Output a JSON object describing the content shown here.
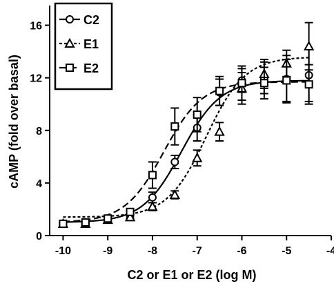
{
  "chart_data": {
    "type": "scatter",
    "title": "",
    "xlabel": "C2 or E1 or E2 (log M)",
    "ylabel": "cAMP (fold over basal)",
    "xlim": [
      -10.3,
      -4
    ],
    "ylim": [
      0,
      17.5
    ],
    "xticks": [
      -10,
      -9,
      -8,
      -7,
      -6,
      -5,
      -4
    ],
    "yticks": [
      0,
      4,
      8,
      12,
      16
    ],
    "grid": false,
    "legend_position": "top-left",
    "series": [
      {
        "name": "C2",
        "marker": "circle",
        "line_style": "solid",
        "x": [
          -10,
          -9.5,
          -9,
          -8.5,
          -8,
          -7.5,
          -7,
          -6.5,
          -6,
          -5.5,
          -5,
          -4.5
        ],
        "y": [
          0.9,
          0.9,
          1.2,
          1.5,
          2.9,
          5.6,
          8.2,
          10.9,
          11.8,
          12.0,
          11.9,
          12.2
        ],
        "err": [
          0.1,
          0.1,
          0.2,
          0.2,
          0.4,
          0.5,
          1.0,
          1.0,
          0.9,
          1.2,
          1.8,
          2.0
        ],
        "ec50": -7.35,
        "bottom": 1.0,
        "top": 11.8
      },
      {
        "name": "E1",
        "marker": "triangle",
        "line_style": "dotted",
        "x": [
          -10,
          -9.5,
          -9,
          -8.5,
          -8,
          -7.5,
          -7,
          -6.5,
          -6,
          -5.5,
          -5,
          -4.5
        ],
        "y": [
          0.9,
          0.9,
          1.2,
          1.4,
          2.2,
          3.1,
          5.9,
          7.9,
          11.2,
          12.3,
          13.1,
          14.4
        ],
        "err": [
          0.1,
          0.1,
          0.2,
          0.2,
          0.3,
          0.3,
          0.6,
          0.7,
          1.2,
          1.1,
          1.0,
          1.8
        ],
        "ec50": -6.8,
        "bottom": 1.4,
        "top": 13.6
      },
      {
        "name": "E2",
        "marker": "square",
        "line_style": "dashed",
        "x": [
          -10,
          -9.5,
          -9,
          -8.5,
          -8,
          -7.5,
          -7,
          -6.5,
          -6,
          -5.5,
          -5,
          -4.5
        ],
        "y": [
          0.9,
          1.0,
          1.3,
          1.8,
          4.6,
          8.3,
          9.2,
          11.0,
          11.6,
          11.6,
          11.8,
          11.5
        ],
        "err": [
          0.1,
          0.1,
          0.2,
          0.2,
          1.0,
          1.4,
          1.3,
          1.1,
          1.3,
          1.2,
          1.6,
          1.5
        ],
        "ec50": -7.75,
        "bottom": 1.0,
        "top": 11.7
      }
    ]
  }
}
